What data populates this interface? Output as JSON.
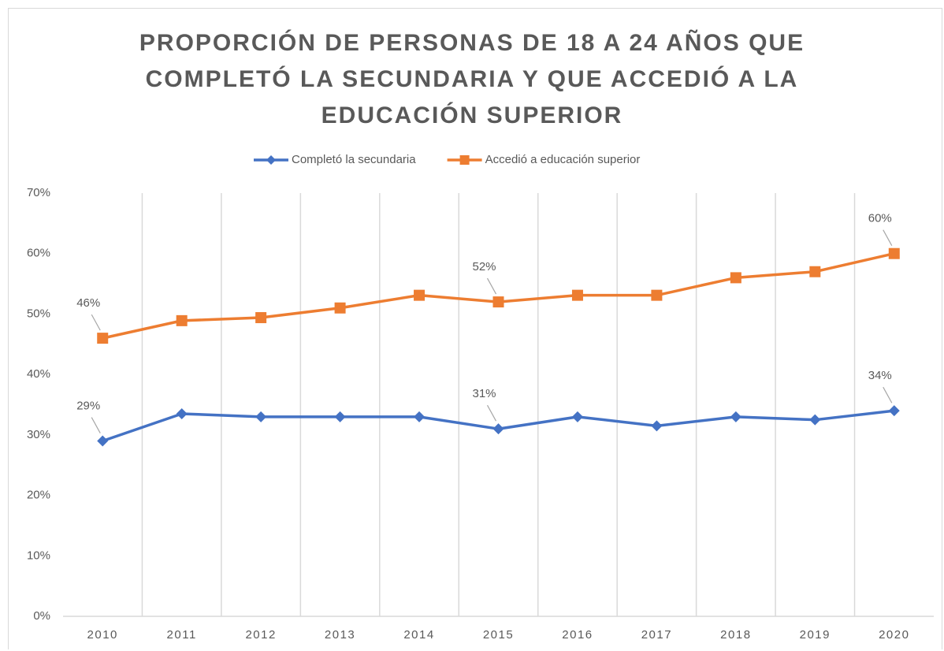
{
  "chart_data": {
    "type": "line",
    "title": "PROPORCIÓN DE PERSONAS DE 18 A 24 AÑOS QUE COMPLETÓ LA SECUNDARIA Y QUE ACCEDIÓ A LA EDUCACIÓN SUPERIOR",
    "categories": [
      "2010",
      "2011",
      "2012",
      "2013",
      "2014",
      "2015",
      "2016",
      "2017",
      "2018",
      "2019",
      "2020"
    ],
    "series": [
      {
        "name": "Completó la secundaria",
        "color": "#4472c4",
        "marker": "diamond",
        "values": [
          29,
          33.5,
          33,
          33,
          33,
          31,
          33,
          31.5,
          33,
          32.5,
          34
        ],
        "value_labels": [
          "29%",
          null,
          null,
          null,
          null,
          "31%",
          null,
          null,
          null,
          null,
          "34%"
        ]
      },
      {
        "name": "Accedió a educación superior",
        "color": "#ed7d31",
        "marker": "square",
        "values": [
          46,
          48.9,
          49.4,
          51,
          53.1,
          52,
          53.1,
          53.1,
          56,
          57,
          60
        ],
        "value_labels": [
          "46%",
          null,
          null,
          null,
          null,
          "52%",
          null,
          null,
          null,
          null,
          "60%"
        ]
      }
    ],
    "ylim": [
      0,
      70
    ],
    "yticks": [
      {
        "value": 0,
        "label": "0%"
      },
      {
        "value": 10,
        "label": "10%"
      },
      {
        "value": 20,
        "label": "20%"
      },
      {
        "value": 30,
        "label": "30%"
      },
      {
        "value": 40,
        "label": "40%"
      },
      {
        "value": 50,
        "label": "50%"
      },
      {
        "value": 60,
        "label": "60%"
      },
      {
        "value": 70,
        "label": "70%"
      }
    ],
    "legend": "top"
  }
}
